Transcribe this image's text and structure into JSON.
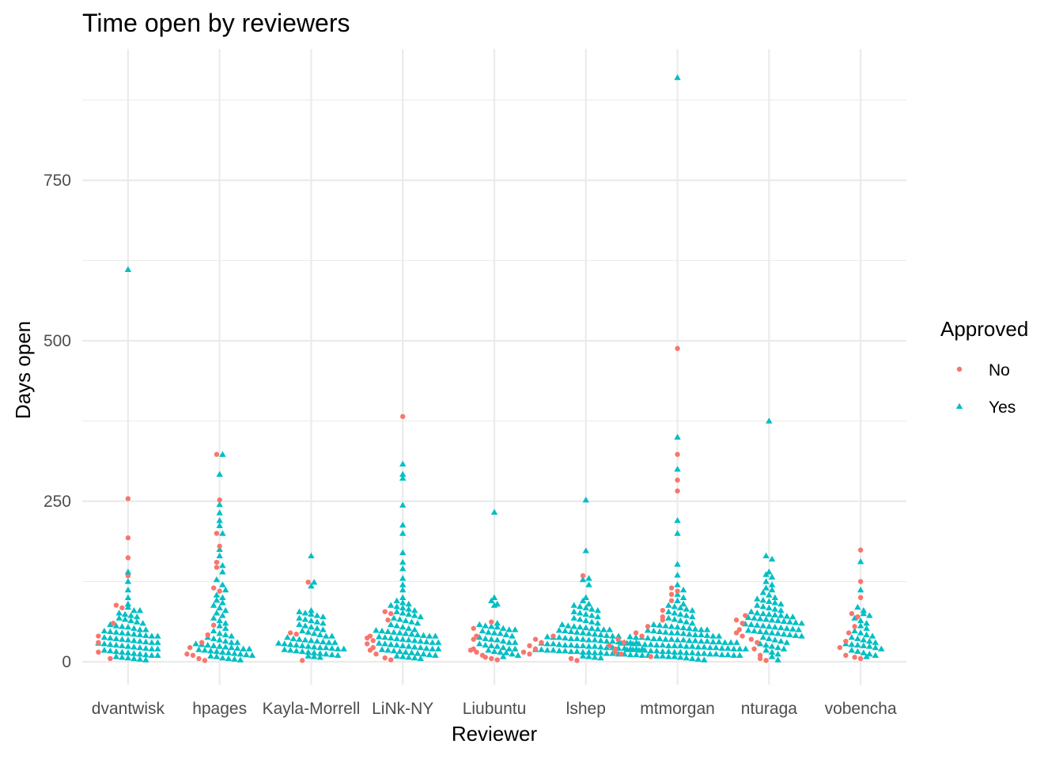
{
  "chart_data": {
    "type": "scatter",
    "subtype": "beeswarm",
    "title": "Time open by reviewers",
    "xlabel": "Reviewer",
    "ylabel": "Days open",
    "categories": [
      "dvantwisk",
      "hpages",
      "Kayla-Morrell",
      "LiNk-NY",
      "Liubuntu",
      "lshep",
      "mtmorgan",
      "nturaga",
      "vobencha"
    ],
    "y_ticks": [
      0,
      250,
      500,
      750
    ],
    "y_tick_labels": [
      "0",
      "250",
      "500",
      "750"
    ],
    "ylim": [
      -40,
      945
    ],
    "grid": true,
    "legend": {
      "title": "Approved",
      "position": "right",
      "entries": [
        {
          "label": "No",
          "color": "#F8766D",
          "shape": "circle"
        },
        {
          "label": "Yes",
          "color": "#00BFC4",
          "shape": "triangle"
        }
      ]
    },
    "series": [
      {
        "name": "No",
        "color": "#F8766D",
        "shape": "circle",
        "points": [
          {
            "reviewer": "dvantwisk",
            "days": [
              254,
              193,
              162,
              134,
              88,
              84,
              60,
              40,
              30,
              15,
              5
            ]
          },
          {
            "reviewer": "hpages",
            "days": [
              323,
              252,
              200,
              180,
              155,
              147,
              115,
              110,
              57,
              42,
              30,
              22,
              12,
              10,
              5,
              2
            ]
          },
          {
            "reviewer": "Kayla-Morrell",
            "days": [
              124,
              45,
              43,
              2
            ]
          },
          {
            "reviewer": "LiNk-NY",
            "days": [
              382,
              78,
              75,
              65,
              40,
              37,
              33,
              28,
              22,
              18,
              12,
              6,
              3
            ]
          },
          {
            "reviewer": "Liubuntu",
            "days": [
              62,
              52,
              40,
              35,
              20,
              18,
              15,
              10,
              7,
              5,
              3
            ]
          },
          {
            "reviewer": "lshep",
            "days": [
              134,
              40,
              35,
              30,
              25,
              20,
              15,
              12,
              5,
              2
            ]
          },
          {
            "reviewer": "mtmorgan",
            "days": [
              488,
              323,
              283,
              266,
              115,
              110,
              105,
              95,
              80,
              70,
              65,
              55,
              45,
              40,
              35,
              30,
              25,
              20,
              15,
              12,
              8
            ]
          },
          {
            "reviewer": "nturaga",
            "days": [
              72,
              65,
              60,
              50,
              45,
              40,
              35,
              30,
              20,
              10,
              5,
              2
            ]
          },
          {
            "reviewer": "vobencha",
            "days": [
              174,
              125,
              100,
              75,
              70,
              55,
              45,
              32,
              22,
              10,
              7,
              5
            ]
          }
        ]
      },
      {
        "name": "Yes",
        "color": "#00BFC4",
        "shape": "triangle",
        "points": [
          {
            "reviewer": "dvantwisk",
            "days": [
              611,
              140,
              125,
              112,
              100,
              90,
              85,
              80,
              80,
              76,
              74,
              72,
              70,
              68,
              66,
              64,
              62,
              60,
              58,
              56,
              55,
              54,
              52,
              50,
              50,
              48,
              47,
              46,
              45,
              44,
              43,
              42,
              41,
              40,
              40,
              38,
              37,
              36,
              35,
              34,
              33,
              32,
              31,
              30,
              30,
              29,
              28,
              27,
              26,
              25,
              24,
              23,
              22,
              21,
              20,
              20,
              18,
              17,
              16,
              15,
              14,
              13,
              12,
              11,
              10,
              10,
              8,
              7,
              6,
              5,
              4,
              3
            ]
          },
          {
            "reviewer": "hpages",
            "days": [
              323,
              292,
              245,
              232,
              220,
              212,
              200,
              175,
              165,
              150,
              140,
              128,
              120,
              112,
              104,
              100,
              96,
              92,
              88,
              84,
              80,
              76,
              72,
              68,
              64,
              60,
              56,
              52,
              48,
              44,
              42,
              40,
              38,
              36,
              34,
              32,
              30,
              30,
              28,
              27,
              26,
              25,
              24,
              23,
              22,
              21,
              20,
              20,
              19,
              18,
              17,
              16,
              15,
              14,
              13,
              12,
              11,
              10,
              9,
              8,
              6,
              5,
              4,
              3
            ]
          },
          {
            "reviewer": "Kayla-Morrell",
            "days": [
              165,
              124,
              118,
              80,
              78,
              76,
              74,
              72,
              70,
              68,
              66,
              64,
              62,
              60,
              58,
              56,
              54,
              52,
              50,
              48,
              46,
              44,
              42,
              40,
              40,
              38,
              36,
              35,
              34,
              33,
              32,
              31,
              30,
              30,
              29,
              28,
              27,
              26,
              25,
              24,
              23,
              22,
              22,
              21,
              20,
              20,
              19,
              18,
              17,
              16,
              15,
              14,
              13,
              12,
              11,
              10,
              9,
              8,
              7
            ]
          },
          {
            "reviewer": "LiNk-NY",
            "days": [
              308,
              292,
              286,
              244,
              213,
              200,
              170,
              155,
              145,
              130,
              120,
              112,
              100,
              95,
              92,
              90,
              88,
              86,
              84,
              82,
              80,
              78,
              76,
              74,
              72,
              70,
              68,
              66,
              64,
              62,
              60,
              58,
              56,
              54,
              52,
              50,
              49,
              48,
              47,
              46,
              45,
              44,
              43,
              42,
              41,
              40,
              40,
              39,
              38,
              37,
              36,
              35,
              34,
              33,
              32,
              31,
              30,
              30,
              29,
              28,
              27,
              26,
              25,
              24,
              23,
              22,
              21,
              20,
              20,
              19,
              18,
              17,
              16,
              15,
              14,
              13,
              12,
              11,
              10,
              9,
              8,
              7,
              6,
              5
            ]
          },
          {
            "reviewer": "Liubuntu",
            "days": [
              233,
              100,
              95,
              90,
              88,
              60,
              58,
              56,
              55,
              54,
              52,
              50,
              50,
              48,
              46,
              45,
              44,
              42,
              40,
              38,
              36,
              35,
              34,
              32,
              30,
              30,
              28,
              26,
              25,
              24,
              22,
              20,
              20,
              18,
              16,
              15,
              14,
              12,
              10,
              8
            ]
          },
          {
            "reviewer": "lshep",
            "days": [
              252,
              173,
              130,
              128,
              120,
              100,
              95,
              90,
              88,
              86,
              84,
              82,
              80,
              78,
              76,
              74,
              72,
              70,
              68,
              66,
              64,
              62,
              60,
              58,
              56,
              55,
              54,
              53,
              52,
              51,
              50,
              50,
              49,
              48,
              47,
              46,
              45,
              44,
              43,
              42,
              41,
              40,
              40,
              39,
              38,
              38,
              37,
              36,
              36,
              35,
              34,
              34,
              33,
              32,
              32,
              31,
              30,
              30,
              30,
              29,
              28,
              28,
              27,
              26,
              26,
              25,
              25,
              24,
              24,
              23,
              22,
              22,
              21,
              21,
              20,
              20,
              20,
              19,
              19,
              18,
              18,
              17,
              17,
              16,
              16,
              15,
              15,
              14,
              14,
              13,
              13,
              12,
              12,
              11,
              11,
              10,
              10,
              9,
              8,
              7,
              6
            ]
          },
          {
            "reviewer": "mtmorgan",
            "days": [
              910,
              350,
              300,
              220,
              200,
              152,
              135,
              120,
              112,
              105,
              100,
              95,
              90,
              88,
              86,
              84,
              82,
              80,
              78,
              76,
              74,
              72,
              70,
              68,
              66,
              64,
              62,
              60,
              58,
              57,
              56,
              55,
              54,
              53,
              52,
              51,
              50,
              50,
              49,
              48,
              47,
              46,
              45,
              45,
              44,
              43,
              42,
              42,
              41,
              40,
              40,
              39,
              38,
              38,
              37,
              36,
              36,
              35,
              35,
              34,
              34,
              33,
              33,
              32,
              32,
              31,
              31,
              30,
              30,
              30,
              29,
              29,
              28,
              28,
              27,
              27,
              26,
              26,
              25,
              25,
              25,
              24,
              24,
              23,
              23,
              22,
              22,
              21,
              21,
              20,
              20,
              20,
              19,
              19,
              18,
              18,
              17,
              17,
              16,
              16,
              15,
              15,
              14,
              14,
              13,
              13,
              12,
              12,
              11,
              11,
              10,
              10,
              9,
              9,
              8,
              8,
              7,
              6,
              5,
              4,
              3
            ]
          },
          {
            "reviewer": "nturaga",
            "days": [
              375,
              165,
              160,
              140,
              136,
              132,
              125,
              120,
              115,
              112,
              108,
              104,
              100,
              98,
              96,
              94,
              92,
              90,
              88,
              86,
              84,
              82,
              80,
              78,
              76,
              75,
              74,
              73,
              72,
              71,
              70,
              69,
              68,
              67,
              66,
              65,
              64,
              63,
              62,
              61,
              60,
              59,
              58,
              57,
              56,
              55,
              54,
              53,
              52,
              51,
              50,
              49,
              48,
              47,
              46,
              45,
              44,
              43,
              42,
              41,
              40,
              38,
              36,
              34,
              32,
              30,
              28,
              26,
              24,
              22,
              20,
              18,
              15,
              12,
              8,
              3
            ]
          },
          {
            "reviewer": "vobencha",
            "days": [
              156,
              112,
              85,
              80,
              75,
              72,
              68,
              64,
              60,
              56,
              52,
              48,
              45,
              42,
              40,
              38,
              36,
              34,
              32,
              30,
              28,
              27,
              26,
              25,
              24,
              22,
              20,
              18,
              16,
              14,
              12,
              10,
              8
            ]
          }
        ]
      }
    ]
  }
}
